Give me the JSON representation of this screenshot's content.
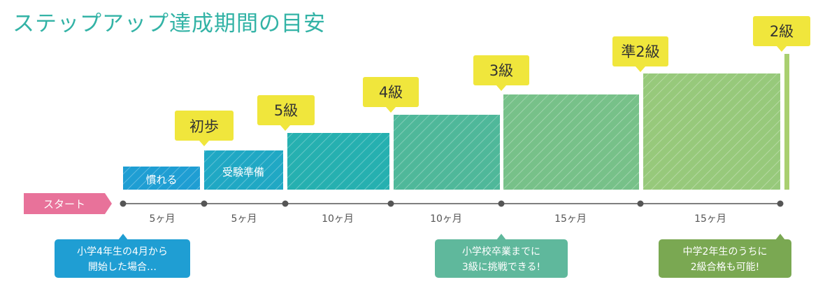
{
  "title": "ステップアップ達成期間の目安",
  "start_label": "スタート",
  "colors": {
    "accent": "#33b3a6",
    "start_tag": "#e8729a",
    "badge": "#f0e63c",
    "timeline": "#555555",
    "note_blue": "#1f9ed3",
    "note_teal": "#5fb89c",
    "note_green": "#7aa852"
  },
  "steps": [
    {
      "label": "慣れる",
      "duration": "5ヶ月",
      "color": "#1f9ed3"
    },
    {
      "label": "受験準備",
      "duration": "5ヶ月",
      "color": "#20a8c4"
    },
    {
      "badge": "5級",
      "duration": "10ヶ月",
      "color": "#26b0b0"
    },
    {
      "badge": "4級",
      "duration": "10ヶ月",
      "color": "#4fb89a"
    },
    {
      "badge": "3級",
      "duration": "15ヶ月",
      "color": "#77c189"
    },
    {
      "badge": "準2級",
      "duration": "15ヶ月",
      "color": "#97c97b"
    },
    {
      "badge": "2級",
      "color": "#a9cf70"
    }
  ],
  "first_step_badge": "初歩",
  "notes": [
    {
      "line1": "小学4年生の4月から",
      "line2": "開始した場合…",
      "color": "#1f9ed3"
    },
    {
      "line1": "小学校卒業までに",
      "line2": "3級に挑戦できる!",
      "color": "#5fb89c"
    },
    {
      "line1": "中学2年生のうちに",
      "line2": "2級合格も可能!",
      "color": "#7aa852"
    }
  ]
}
